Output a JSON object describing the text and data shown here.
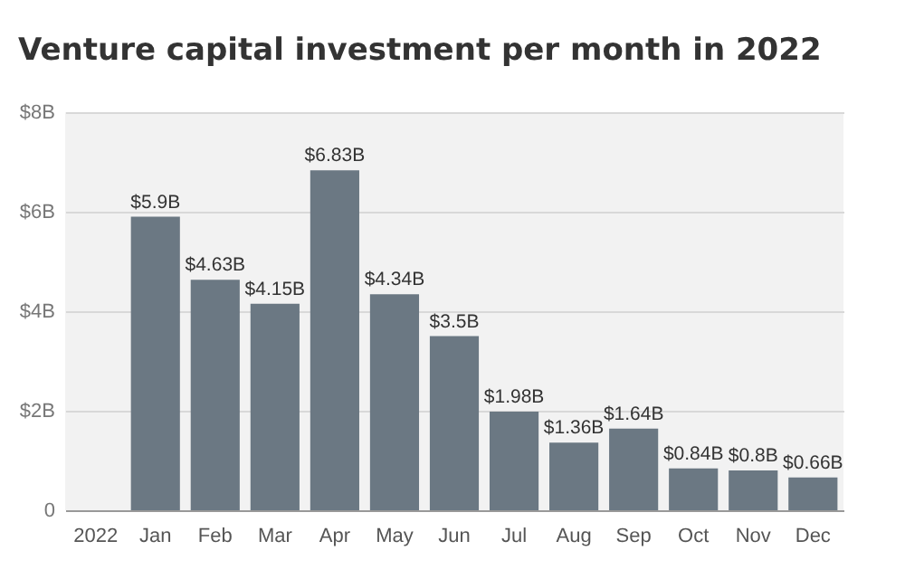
{
  "chart_data": {
    "type": "bar",
    "title": "Venture capital investment per month in 2022",
    "categories": [
      "2022",
      "Jan",
      "Feb",
      "Mar",
      "Apr",
      "May",
      "Jun",
      "Jul",
      "Aug",
      "Sep",
      "Oct",
      "Nov",
      "Dec"
    ],
    "values": [
      null,
      5.9,
      4.63,
      4.15,
      6.83,
      4.34,
      3.5,
      1.98,
      1.36,
      1.64,
      0.84,
      0.8,
      0.66
    ],
    "value_labels": [
      null,
      "$5.9B",
      "$4.63B",
      "$4.15B",
      "$6.83B",
      "$4.34B",
      "$3.5B",
      "$1.98B",
      "$1.36B",
      "$1.64B",
      "$0.84B",
      "$0.8B",
      "$0.66B"
    ],
    "color": "#6b7883",
    "ylim": [
      0,
      8
    ],
    "yticks": [
      0,
      {
        "value": 2,
        "label": "$2B"
      },
      {
        "value": 4,
        "label": "$4B"
      },
      {
        "value": 6,
        "label": "$6B"
      },
      {
        "value": 8,
        "label": "$8B"
      }
    ],
    "grid": "y"
  }
}
